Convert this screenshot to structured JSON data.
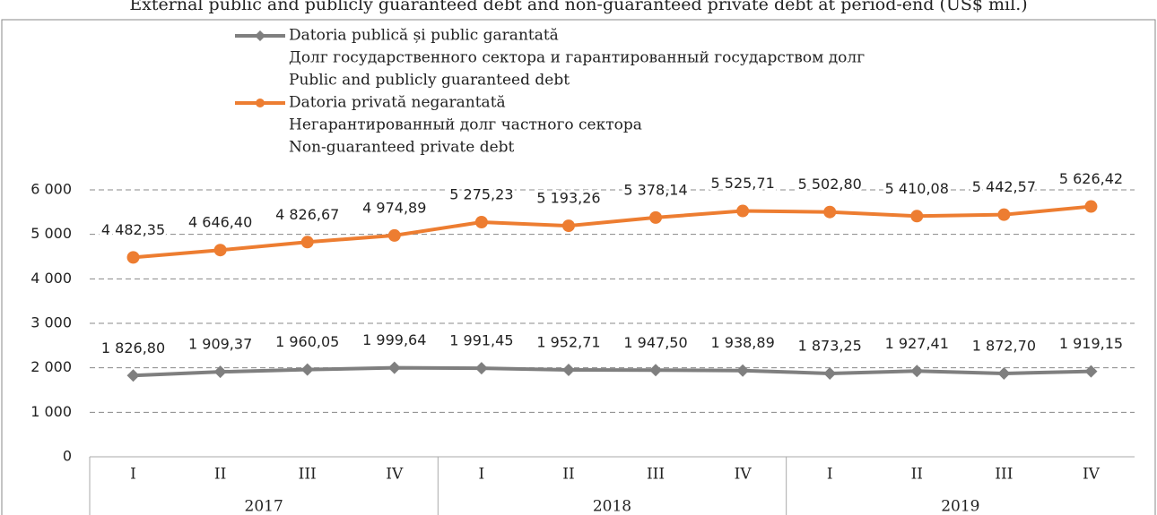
{
  "chart_data": {
    "type": "line",
    "title": "External public and publicly guaranteed debt and non-guaranteed private debt at period-end (US$ mil.)",
    "categories": [
      "I",
      "II",
      "III",
      "IV",
      "I",
      "II",
      "III",
      "IV",
      "I",
      "II",
      "III",
      "IV"
    ],
    "category_groups": [
      "2017",
      "2018",
      "2019"
    ],
    "series": [
      {
        "name": "Datoria publică și public garantată",
        "name_lines": [
          "Долг государственного сектора и гарантированный государством долг",
          "Public and publicly guaranteed debt"
        ],
        "color": "#7f7f7f",
        "marker": "diamond",
        "values": [
          1826.8,
          1909.37,
          1960.05,
          1999.64,
          1991.45,
          1952.71,
          1947.5,
          1938.89,
          1873.25,
          1927.41,
          1872.7,
          1919.15
        ],
        "value_labels": [
          "1 826,80",
          "1 909,37",
          "1 960,05",
          "1 999,64",
          "1 991,45",
          "1 952,71",
          "1 947,50",
          "1 938,89",
          "1 873,25",
          "1 927,41",
          "1 872,70",
          "1 919,15"
        ]
      },
      {
        "name": "Datoria privată negarantată",
        "name_lines": [
          "Негарантированный долг частного сектора",
          "Non-guaranteed private debt"
        ],
        "color": "#ed7d31",
        "marker": "circle",
        "values": [
          4482.35,
          4646.4,
          4826.67,
          4974.89,
          5275.23,
          5193.26,
          5378.14,
          5525.71,
          5502.8,
          5410.08,
          5442.57,
          5626.42
        ],
        "value_labels": [
          "4 482,35",
          "4 646,40",
          "4 826,67",
          "4 974,89",
          "5 275,23",
          "5 193,26",
          "5 378,14",
          "5 525,71",
          "5 502,80",
          "5 410,08",
          "5 442,57",
          "5 626,42"
        ]
      }
    ],
    "ylim": [
      0,
      6000
    ],
    "yticks": [
      0,
      {
        "value": 1000,
        "label": "1 000"
      },
      {
        "value": 2000,
        "label": "2 000"
      },
      {
        "value": 3000,
        "label": "3 000"
      },
      {
        "value": 4000,
        "label": "4 000"
      },
      {
        "value": 5000,
        "label": "5 000"
      },
      {
        "value": 6000,
        "label": "6 000"
      }
    ],
    "grid": true
  }
}
